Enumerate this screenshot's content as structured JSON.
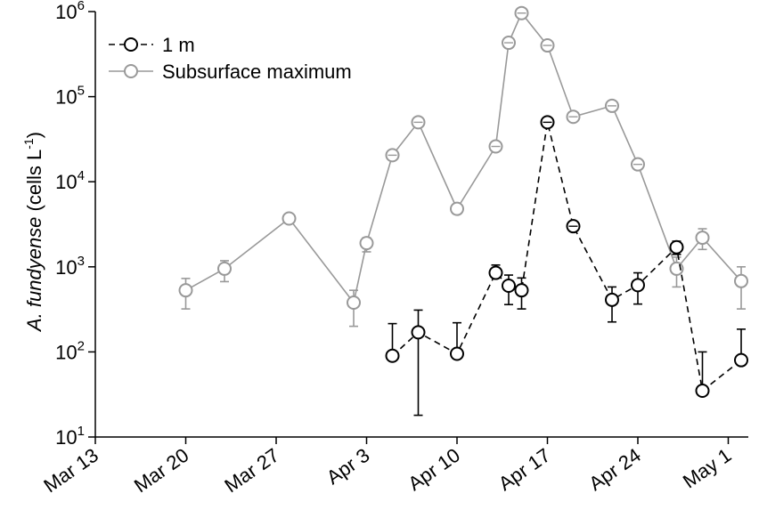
{
  "chart_data": {
    "type": "line",
    "xlabel": "",
    "ylabel": {
      "species": "A. fundyense",
      "units_prefix": "(cells L",
      "units_sup": "-1",
      "units_suffix": ")"
    },
    "yscale": "log",
    "ylim": [
      10,
      1000000
    ],
    "y_ticks": [
      {
        "value": 10,
        "base": "10",
        "exp": "1"
      },
      {
        "value": 100,
        "base": "10",
        "exp": "2"
      },
      {
        "value": 1000,
        "base": "10",
        "exp": "3"
      },
      {
        "value": 10000,
        "base": "10",
        "exp": "4"
      },
      {
        "value": 100000,
        "base": "10",
        "exp": "5"
      },
      {
        "value": 1000000,
        "base": "10",
        "exp": "6"
      }
    ],
    "xlim": [
      "2008-03-13",
      "2008-05-04"
    ],
    "x_ticks": [
      {
        "date": "2008-03-13",
        "label": "Mar 13"
      },
      {
        "date": "2008-03-20",
        "label": "Mar 20"
      },
      {
        "date": "2008-03-27",
        "label": "Mar 27"
      },
      {
        "date": "2008-04-03",
        "label": "Apr 3"
      },
      {
        "date": "2008-04-10",
        "label": "Apr 10"
      },
      {
        "date": "2008-04-17",
        "label": "Apr 17"
      },
      {
        "date": "2008-04-24",
        "label": "Apr 24"
      },
      {
        "date": "2008-05-01",
        "label": "May 1"
      }
    ],
    "grid": false,
    "legend_position": "top-left",
    "series": [
      {
        "name": "1 m",
        "color": "#000000",
        "line_style": "dashed",
        "marker": "open-circle",
        "points": [
          {
            "date": "2008-04-05",
            "y": 90,
            "err_hi": 215
          },
          {
            "date": "2008-04-07",
            "y": 170,
            "err_hi": 310,
            "err_lo": 18
          },
          {
            "date": "2008-04-10",
            "y": 95,
            "err_hi": 220
          },
          {
            "date": "2008-04-13",
            "y": 850,
            "err_hi": 1050
          },
          {
            "date": "2008-04-14",
            "y": 600,
            "err_hi": 800,
            "err_lo": 360
          },
          {
            "date": "2008-04-15",
            "y": 530,
            "err_hi": 740,
            "err_lo": 320
          },
          {
            "date": "2008-04-17",
            "y": 50000
          },
          {
            "date": "2008-04-19",
            "y": 3000
          },
          {
            "date": "2008-04-22",
            "y": 410,
            "err_hi": 580,
            "err_lo": 225
          },
          {
            "date": "2008-04-24",
            "y": 610,
            "err_hi": 850,
            "err_lo": 365
          },
          {
            "date": "2008-04-27",
            "y": 1700,
            "err_hi": 2000,
            "err_lo": 1400
          },
          {
            "date": "2008-04-29",
            "y": 35,
            "err_hi": 100
          },
          {
            "date": "2008-05-02",
            "y": 80,
            "err_hi": 185
          }
        ]
      },
      {
        "name": "Subsurface maximum",
        "color": "#999999",
        "line_style": "solid",
        "marker": "open-circle",
        "points": [
          {
            "date": "2008-03-20",
            "y": 530,
            "err_hi": 730,
            "err_lo": 320
          },
          {
            "date": "2008-03-23",
            "y": 950,
            "err_hi": 1180,
            "err_lo": 670
          },
          {
            "date": "2008-03-28",
            "y": 3700,
            "err_hi": 4100,
            "err_lo": 3300
          },
          {
            "date": "2008-04-02",
            "y": 380,
            "err_hi": 530,
            "err_lo": 200
          },
          {
            "date": "2008-04-03",
            "y": 1900,
            "err_hi": 2200,
            "err_lo": 1500
          },
          {
            "date": "2008-04-05",
            "y": 20500
          },
          {
            "date": "2008-04-07",
            "y": 50000
          },
          {
            "date": "2008-04-10",
            "y": 4800,
            "err_hi": 5300,
            "err_lo": 4200
          },
          {
            "date": "2008-04-13",
            "y": 26000
          },
          {
            "date": "2008-04-14",
            "y": 430000
          },
          {
            "date": "2008-04-15",
            "y": 960000
          },
          {
            "date": "2008-04-17",
            "y": 400000
          },
          {
            "date": "2008-04-19",
            "y": 58000
          },
          {
            "date": "2008-04-22",
            "y": 78000
          },
          {
            "date": "2008-04-24",
            "y": 16000
          },
          {
            "date": "2008-04-27",
            "y": 950,
            "err_hi": 1300,
            "err_lo": 580
          },
          {
            "date": "2008-04-29",
            "y": 2200,
            "err_hi": 2800,
            "err_lo": 1600
          },
          {
            "date": "2008-05-02",
            "y": 680,
            "err_hi": 1000,
            "err_lo": 320
          }
        ]
      }
    ]
  }
}
